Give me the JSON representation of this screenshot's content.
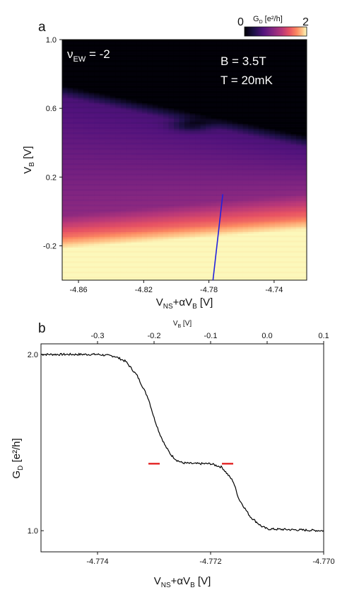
{
  "panel_a": {
    "label": "a",
    "annotations": {
      "filling": "ν",
      "filling_sub": "EW",
      "filling_value": " = -2",
      "field": "B = 3.5T",
      "temperature": "T = 20mK"
    },
    "colorbar": {
      "label": "G",
      "label_sub": "D",
      "label_unit": " [e²/h]",
      "min_label": "0",
      "max_label": "2",
      "colormap": "magma",
      "range": [
        0,
        2
      ]
    },
    "cut_line_color": "#2222dd",
    "ylabel_main": "V",
    "ylabel_sub": "B",
    "ylabel_unit": " [V]",
    "xlabel_main": "V",
    "xlabel_sub": "NS",
    "xlabel_rest": "+αV",
    "xlabel_sub2": "B",
    "xlabel_unit": "  [V]"
  },
  "panel_b": {
    "label": "b",
    "trace_color": "#000000",
    "marker_color": "#e01010",
    "ylabel_main": "G",
    "ylabel_sub": "D",
    "ylabel_unit": " [e²/h]",
    "xlabel_main": "V",
    "xlabel_sub": "NS",
    "xlabel_rest": "+αV",
    "xlabel_sub2": "B",
    "xlabel_unit": "  [V]",
    "top_label_main": "V",
    "top_label_sub": "B",
    "top_label_unit": " [V]"
  },
  "chart_data": [
    {
      "type": "heatmap",
      "x_range": [
        -4.87,
        -4.72
      ],
      "y_range": [
        -0.4,
        1.0
      ],
      "x_ticks": [
        -4.86,
        -4.82,
        -4.78,
        -4.74
      ],
      "x_tick_labels": [
        "-4.86",
        "-4.82",
        "-4.78",
        "-4.74"
      ],
      "y_ticks": [
        1.0,
        0.6,
        0.2,
        -0.2
      ],
      "y_tick_labels": [
        "1.0",
        "0.6",
        "0.2",
        "-0.2"
      ],
      "z_range": [
        0,
        2
      ],
      "cut_line": {
        "x": [
          -4.7775,
          -4.7715
        ],
        "y": [
          -0.4,
          0.1
        ]
      }
    },
    {
      "type": "line",
      "x_range": [
        -4.775,
        -4.77
      ],
      "y_range": [
        0.88,
        2.06
      ],
      "x_ticks": [
        -4.774,
        -4.772,
        -4.77
      ],
      "x_tick_labels": [
        "-4.774",
        "-4.772",
        "-4.770"
      ],
      "y_ticks": [
        2.0,
        1.0
      ],
      "y_tick_labels": [
        "2.0",
        "1.0"
      ],
      "top_axis_range": [
        -0.4,
        0.1
      ],
      "top_ticks": [
        -0.3,
        -0.2,
        -0.1,
        0.0,
        0.1
      ],
      "top_tick_labels": [
        "-0.3",
        "-0.2",
        "-0.1",
        "0.0",
        "0.1"
      ],
      "series": [
        {
          "x": [
            -4.775,
            -4.7745,
            -4.774,
            -4.7737,
            -4.7735,
            -4.7733,
            -4.7731,
            -4.773,
            -4.7729,
            -4.7728,
            -4.7727,
            -4.7726,
            -4.7725,
            -4.7723,
            -4.772,
            -4.7718,
            -4.7716,
            -4.7715,
            -4.7713,
            -4.7711,
            -4.771,
            -4.7705,
            -4.77
          ],
          "y": [
            2.0,
            2.0,
            2.0,
            1.99,
            1.96,
            1.88,
            1.75,
            1.64,
            1.55,
            1.48,
            1.43,
            1.4,
            1.385,
            1.38,
            1.38,
            1.36,
            1.28,
            1.18,
            1.08,
            1.025,
            1.01,
            1.005,
            1.0
          ]
        }
      ],
      "markers": [
        {
          "x": [
            -4.7731,
            -4.7729
          ],
          "y": 1.38
        },
        {
          "x": [
            -4.7718,
            -4.7716
          ],
          "y": 1.38
        }
      ]
    }
  ]
}
